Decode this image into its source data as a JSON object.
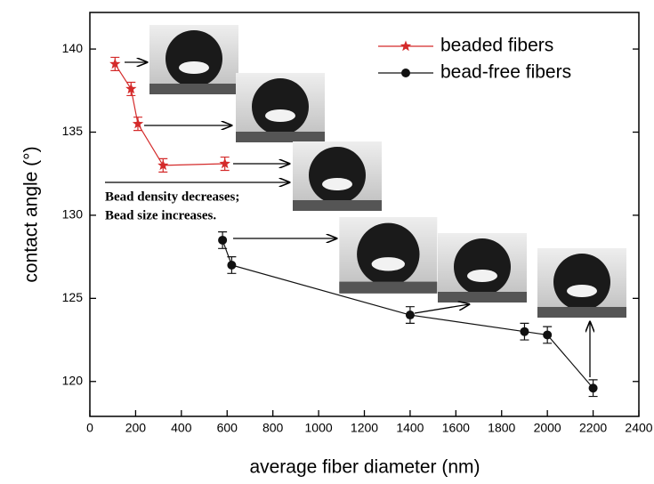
{
  "chart_data": {
    "type": "line",
    "xlabel": "average fiber diameter (nm)",
    "ylabel": "contact angle (°)",
    "xlim": [
      0,
      2400
    ],
    "ylim": [
      117.9,
      142.2
    ],
    "xticks": [
      0,
      200,
      400,
      600,
      800,
      1000,
      1200,
      1400,
      1600,
      1800,
      2000,
      2200,
      2400
    ],
    "yticks": [
      120,
      125,
      130,
      135,
      140
    ],
    "legend": "upper right",
    "series": [
      {
        "name": "beaded fibers",
        "color": "#d42a2a",
        "marker": "star",
        "x": [
          110,
          180,
          210,
          320,
          590
        ],
        "values": [
          139.1,
          137.6,
          135.5,
          133.0,
          133.1
        ],
        "errors": [
          0.4,
          0.4,
          0.4,
          0.4,
          0.4
        ]
      },
      {
        "name": "bead-free fibers",
        "color": "#111111",
        "marker": "circle",
        "x": [
          580,
          620,
          1400,
          1900,
          2000,
          2200
        ],
        "values": [
          128.5,
          127.0,
          124.0,
          123.0,
          122.8,
          119.6
        ],
        "errors": [
          0.5,
          0.5,
          0.5,
          0.5,
          0.5,
          0.5
        ]
      }
    ],
    "annotations": [
      "Bead density decreases;",
      "Bead size increases."
    ]
  }
}
